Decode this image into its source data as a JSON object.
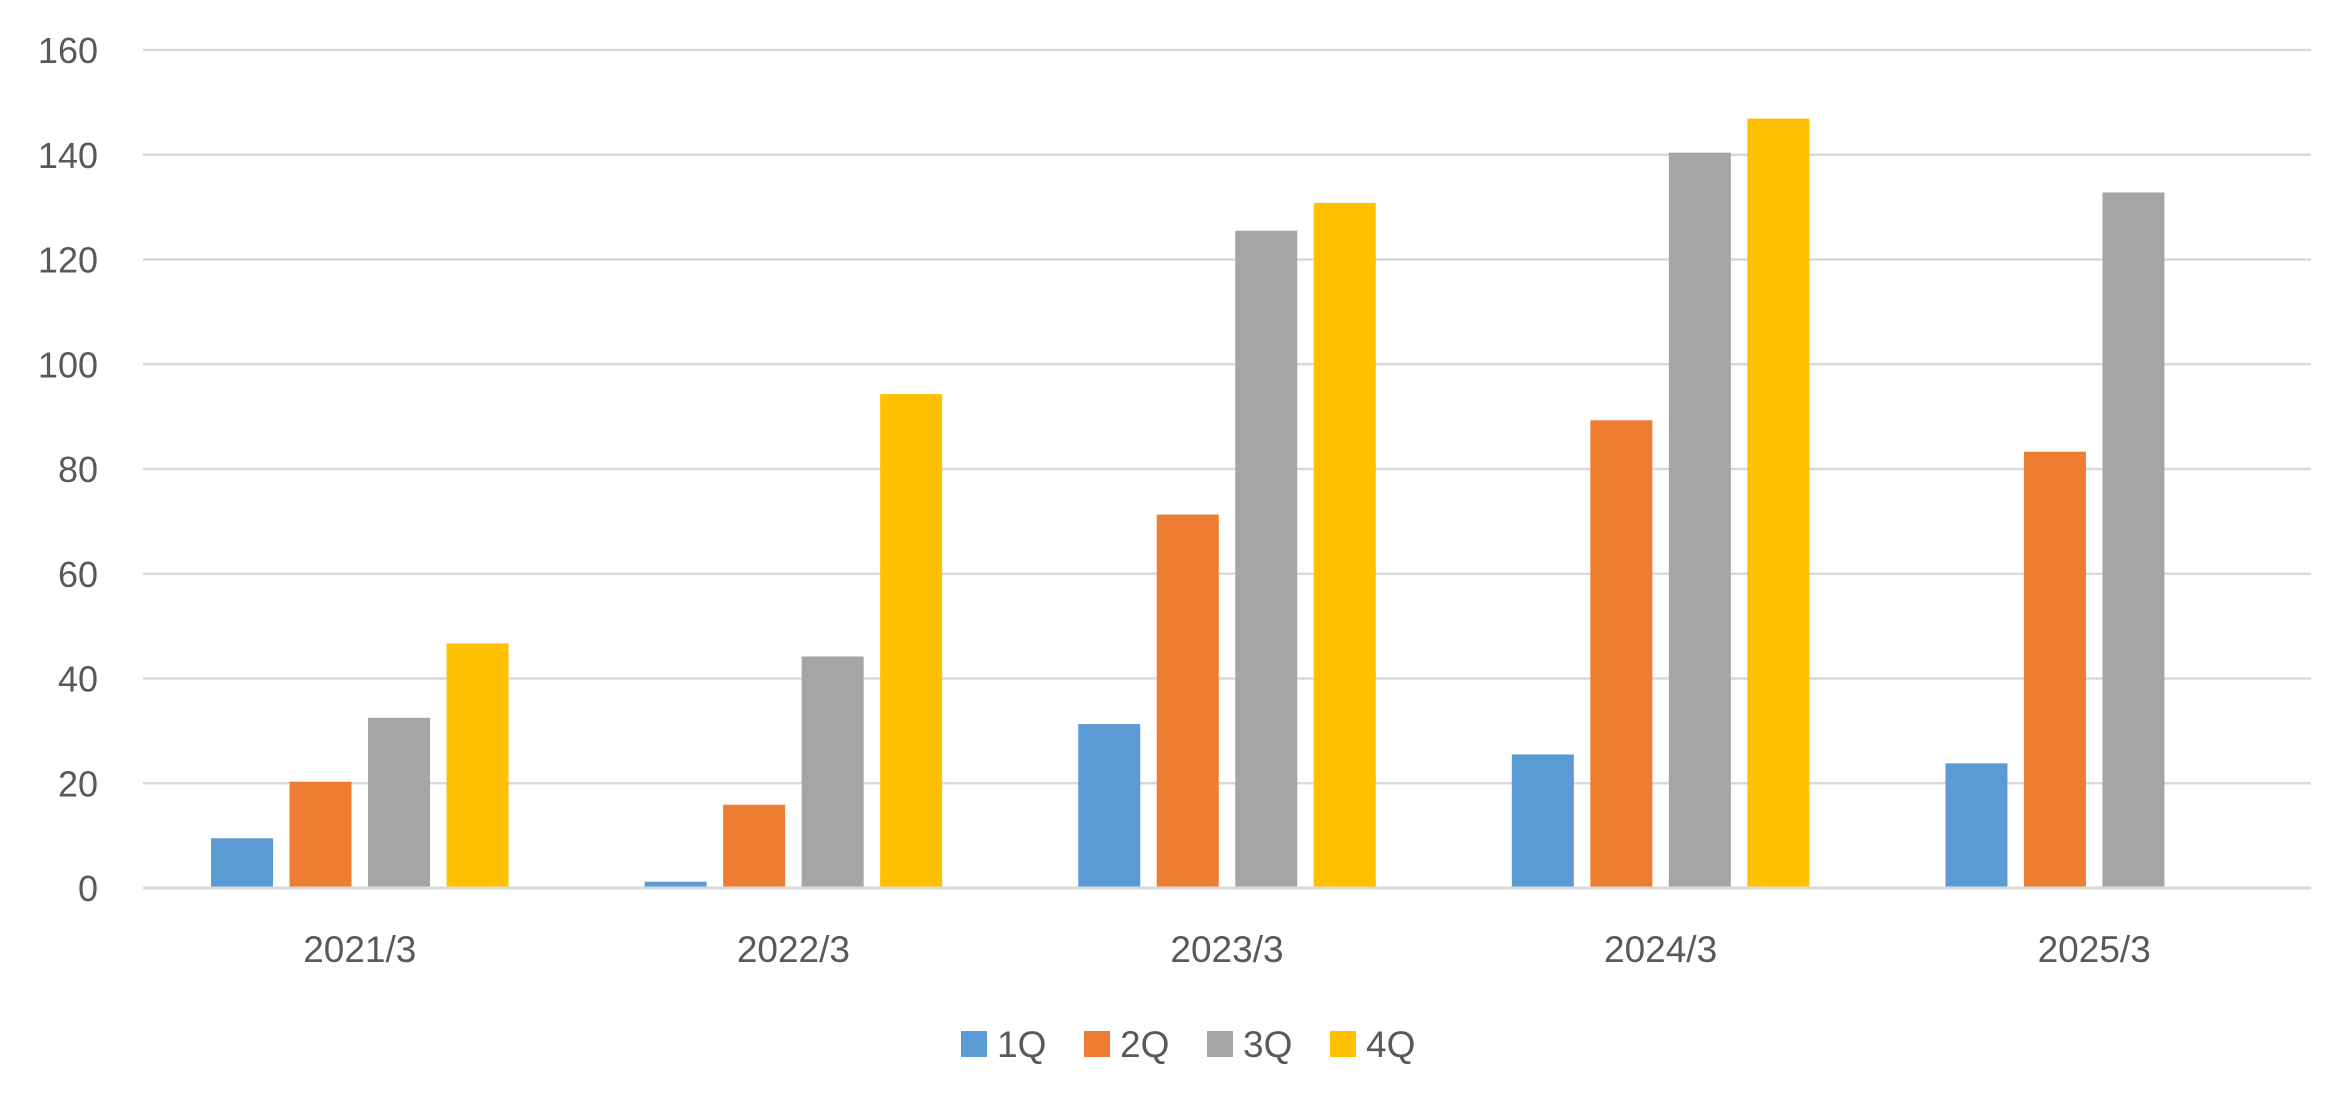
{
  "chart_data": {
    "type": "bar",
    "title": "",
    "xlabel": "",
    "ylabel": "",
    "categories": [
      "2021/3",
      "2022/3",
      "2023/3",
      "2024/3",
      "2025/3"
    ],
    "series": [
      {
        "name": "1Q",
        "color": "#5B9BD5",
        "values": [
          9.5,
          1.2,
          31.3,
          25.5,
          23.8
        ]
      },
      {
        "name": "2Q",
        "color": "#ED7D31",
        "values": [
          20.3,
          15.9,
          71.3,
          89.3,
          83.3
        ]
      },
      {
        "name": "3Q",
        "color": "#A5A5A5",
        "values": [
          32.5,
          44.2,
          125.5,
          140.4,
          132.8
        ]
      },
      {
        "name": "4Q",
        "color": "#FFC000",
        "values": [
          46.7,
          94.3,
          130.8,
          146.9,
          null
        ]
      }
    ],
    "ylim": [
      0,
      160
    ],
    "yticks": [
      "0",
      "20",
      "40",
      "60",
      "80",
      "100",
      "120",
      "140",
      "160"
    ],
    "grid": true,
    "legend": "bottom-center"
  }
}
